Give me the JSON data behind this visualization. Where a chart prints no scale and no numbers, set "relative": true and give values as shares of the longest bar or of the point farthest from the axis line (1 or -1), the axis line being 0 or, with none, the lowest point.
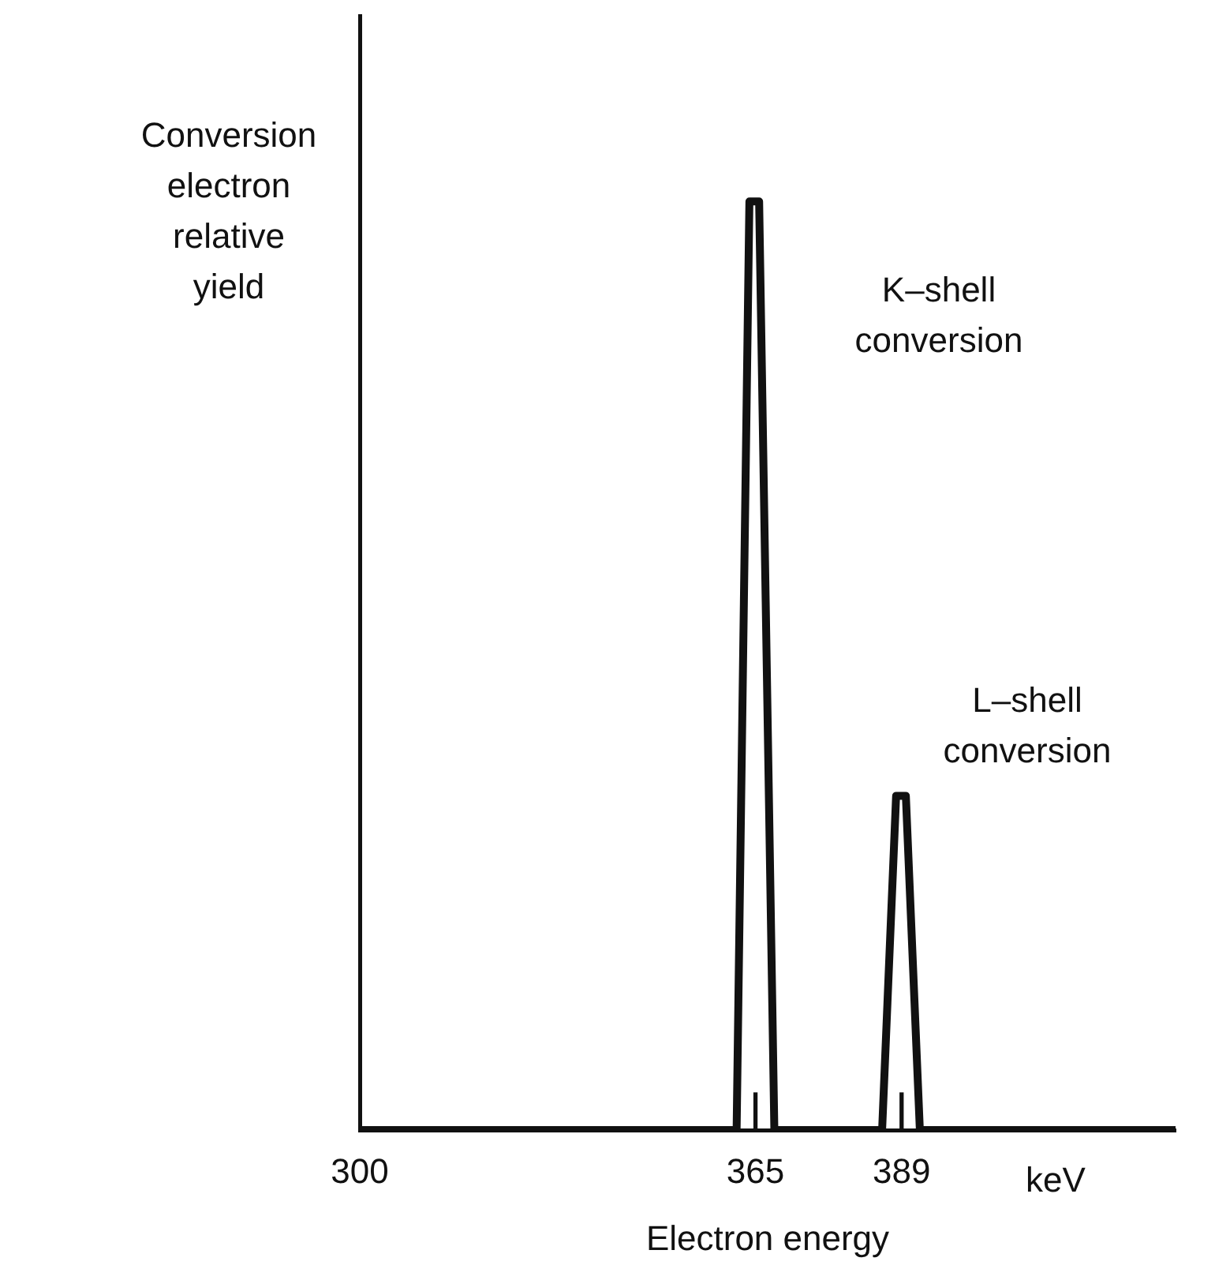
{
  "chart_data": {
    "type": "line",
    "relative": true,
    "xlabel": "Electron energy",
    "ylabel": "Conversion electron relative yield",
    "xlim": [
      300,
      434
    ],
    "xticks": [
      300,
      365,
      389
    ],
    "marker": "none",
    "line_style": "solid",
    "grid": false,
    "legend": false,
    "x": [
      300,
      361.9,
      364.0,
      365.6,
      368.1,
      385.8,
      388.1,
      389.7,
      392.0,
      434
    ],
    "series": [
      {
        "color": "#111111",
        "values": [
          0,
          0,
          1,
          1,
          0,
          0,
          0.36,
          0.36,
          0,
          0
        ]
      },
      {
        "type": "bar",
        "color": "#111111",
        "x": [
          365,
          389
        ],
        "values": [
          0.04,
          0.04
        ]
      }
    ],
    "annotations": [
      "K–shell conversion",
      "L–shell conversion",
      "keV"
    ]
  }
}
